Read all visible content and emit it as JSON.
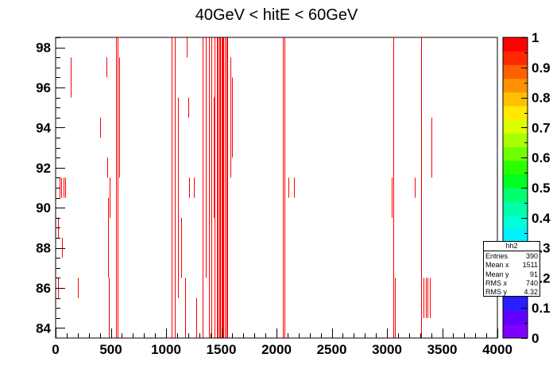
{
  "chart_data": {
    "type": "heatmap",
    "title": "40GeV < hitE < 60GeV",
    "xlim": [
      0,
      4000
    ],
    "ylim": [
      83.5,
      98.5
    ],
    "x_ticks": [
      "0",
      "500",
      "1000",
      "1500",
      "2000",
      "2500",
      "3000",
      "3500",
      "4000"
    ],
    "x_tick_values": [
      0,
      500,
      1000,
      1500,
      2000,
      2500,
      3000,
      3500,
      4000
    ],
    "y_ticks": [
      "84",
      "86",
      "88",
      "90",
      "92",
      "94",
      "96",
      "98"
    ],
    "y_tick_values": [
      84,
      86,
      88,
      90,
      92,
      94,
      96,
      98
    ],
    "z_ticks": [
      "0",
      "0.1",
      "0.2",
      "0.3",
      "0.4",
      "0.5",
      "0.6",
      "0.7",
      "0.8",
      "0.9",
      "1"
    ],
    "z_range": [
      0,
      1
    ],
    "mark_color": "#ff0000",
    "palette": [
      "#8000ff",
      "#6200ff",
      "#2a1dff",
      "#0038ff",
      "#0078ff",
      "#00aaff",
      "#00d2ff",
      "#00f2ff",
      "#00ffd8",
      "#00ffa8",
      "#00ff6c",
      "#00ff20",
      "#2aff00",
      "#70ff00",
      "#aaff00",
      "#dcff00",
      "#ffea00",
      "#ffc000",
      "#ff9000",
      "#ff6000",
      "#ff2a00",
      "#ff0000"
    ],
    "segments": [
      [
        20,
        85.5,
        86.5
      ],
      [
        20,
        88.5,
        89.5
      ],
      [
        35,
        90.5,
        91.5
      ],
      [
        50,
        90.5,
        91.5
      ],
      [
        70,
        90.5,
        91.5
      ],
      [
        85,
        90.5,
        91.5
      ],
      [
        60,
        87.5,
        88.5
      ],
      [
        140,
        95.5,
        97.5
      ],
      [
        200,
        85.5,
        86.5
      ],
      [
        400,
        93.5,
        94.5
      ],
      [
        460,
        96.5,
        97.5
      ],
      [
        470,
        91.5,
        92.5
      ],
      [
        475,
        88.5,
        90.5
      ],
      [
        475,
        86.5,
        88.5
      ],
      [
        490,
        89.5,
        91.5
      ],
      [
        480,
        83.5,
        86.5
      ],
      [
        545,
        83.5,
        98.5
      ],
      [
        560,
        83.5,
        98.5
      ],
      [
        575,
        91.5,
        97.5
      ],
      [
        1050,
        83.5,
        98.5
      ],
      [
        1080,
        83.5,
        98.5
      ],
      [
        1110,
        85.5,
        95.5
      ],
      [
        1140,
        86.5,
        89.5
      ],
      [
        1170,
        83.5,
        86.5
      ],
      [
        1190,
        97.5,
        98.5
      ],
      [
        1200,
        94.5,
        95.5
      ],
      [
        1210,
        90.5,
        91.5
      ],
      [
        1250,
        90.5,
        91.5
      ],
      [
        1270,
        83.5,
        85.5
      ],
      [
        1330,
        83.5,
        98.5
      ],
      [
        1360,
        86.5,
        98.5
      ],
      [
        1390,
        83.5,
        98.5
      ],
      [
        1410,
        83.5,
        98.5
      ],
      [
        1430,
        89.5,
        95.5
      ],
      [
        1440,
        83.5,
        98.5
      ],
      [
        1460,
        83.5,
        98.5
      ],
      [
        1470,
        83.5,
        98.5
      ],
      [
        1480,
        83.5,
        98.5
      ],
      [
        1490,
        83.5,
        98.5
      ],
      [
        1500,
        83.5,
        98.5
      ],
      [
        1510,
        83.5,
        98.5
      ],
      [
        1520,
        83.5,
        98.5
      ],
      [
        1530,
        83.5,
        98.5
      ],
      [
        1545,
        83.5,
        98.5
      ],
      [
        1555,
        83.5,
        98.5
      ],
      [
        1580,
        91.5,
        97.5
      ],
      [
        1600,
        92.5,
        96.5
      ],
      [
        2055,
        83.5,
        98.5
      ],
      [
        2070,
        83.5,
        98.5
      ],
      [
        2110,
        90.5,
        91.5
      ],
      [
        2160,
        90.5,
        91.5
      ],
      [
        3040,
        89.5,
        91.5
      ],
      [
        3060,
        83.5,
        98.5
      ],
      [
        3070,
        83.5,
        86.5
      ],
      [
        3250,
        90.5,
        91.5
      ],
      [
        3310,
        83.5,
        98.5
      ],
      [
        3330,
        84.5,
        86.5
      ],
      [
        3350,
        84.5,
        86.5
      ],
      [
        3370,
        84.5,
        86.5
      ],
      [
        3390,
        84.5,
        86.5
      ],
      [
        3400,
        91.5,
        94.5
      ]
    ]
  },
  "stats_box": {
    "title": "hh2",
    "rows": [
      {
        "label": "Entries",
        "value": "390"
      },
      {
        "label": "Mean x",
        "value": "1511"
      },
      {
        "label": "Mean y",
        "value": "91"
      },
      {
        "label": "RMS x",
        "value": "740"
      },
      {
        "label": "RMS y",
        "value": "4.32"
      }
    ]
  }
}
